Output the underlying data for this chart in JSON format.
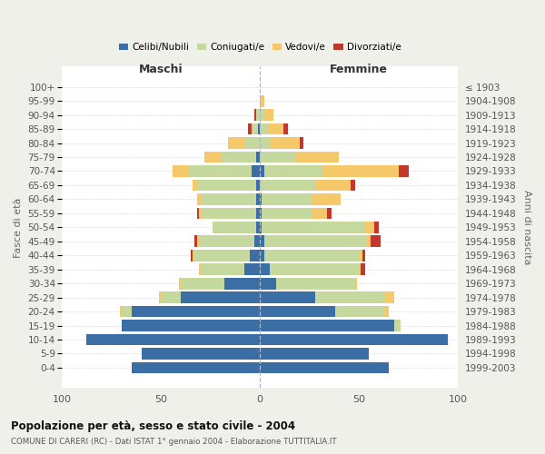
{
  "age_groups": [
    "0-4",
    "5-9",
    "10-14",
    "15-19",
    "20-24",
    "25-29",
    "30-34",
    "35-39",
    "40-44",
    "45-49",
    "50-54",
    "55-59",
    "60-64",
    "65-69",
    "70-74",
    "75-79",
    "80-84",
    "85-89",
    "90-94",
    "95-99",
    "100+"
  ],
  "birth_years": [
    "1999-2003",
    "1994-1998",
    "1989-1993",
    "1984-1988",
    "1979-1983",
    "1974-1978",
    "1969-1973",
    "1964-1968",
    "1959-1963",
    "1954-1958",
    "1949-1953",
    "1944-1948",
    "1939-1943",
    "1934-1938",
    "1929-1933",
    "1924-1928",
    "1919-1923",
    "1914-1918",
    "1909-1913",
    "1904-1908",
    "≤ 1903"
  ],
  "maschi": {
    "celibi": [
      65,
      60,
      88,
      70,
      65,
      40,
      18,
      8,
      5,
      3,
      2,
      2,
      2,
      2,
      4,
      2,
      0,
      1,
      0,
      0,
      0
    ],
    "coniugati": [
      0,
      0,
      0,
      0,
      5,
      10,
      22,
      22,
      28,
      28,
      22,
      28,
      28,
      30,
      32,
      18,
      8,
      3,
      2,
      0,
      0
    ],
    "vedovi": [
      0,
      0,
      0,
      0,
      1,
      1,
      1,
      1,
      1,
      1,
      0,
      1,
      2,
      2,
      8,
      8,
      8,
      0,
      0,
      0,
      0
    ],
    "divorziati": [
      0,
      0,
      0,
      0,
      0,
      0,
      0,
      0,
      1,
      1,
      0,
      1,
      0,
      0,
      0,
      0,
      0,
      2,
      1,
      0,
      0
    ]
  },
  "femmine": {
    "nubili": [
      65,
      55,
      95,
      68,
      38,
      28,
      8,
      5,
      2,
      2,
      1,
      1,
      1,
      0,
      2,
      0,
      0,
      0,
      0,
      0,
      0
    ],
    "coniugate": [
      0,
      0,
      0,
      3,
      25,
      35,
      40,
      45,
      48,
      52,
      52,
      25,
      25,
      28,
      30,
      18,
      5,
      4,
      2,
      0,
      0
    ],
    "vedove": [
      0,
      0,
      0,
      0,
      2,
      5,
      1,
      1,
      2,
      2,
      5,
      8,
      15,
      18,
      38,
      22,
      15,
      8,
      5,
      2,
      0
    ],
    "divorziate": [
      0,
      0,
      0,
      0,
      0,
      0,
      0,
      2,
      1,
      5,
      2,
      2,
      0,
      2,
      5,
      0,
      2,
      2,
      0,
      0,
      0
    ]
  },
  "colors": {
    "celibi": "#3a6ea5",
    "coniugati": "#c5d89d",
    "vedovi": "#f5c96a",
    "divorziati": "#c0392b"
  },
  "xlim": 100,
  "title": "Popolazione per età, sesso e stato civile - 2004",
  "subtitle": "COMUNE DI CARERI (RC) - Dati ISTAT 1° gennaio 2004 - Elaborazione TUTTITALIA.IT",
  "ylabel_left": "Fasce di età",
  "ylabel_right": "Anni di nascita",
  "xlabel_maschi": "Maschi",
  "xlabel_femmine": "Femmine",
  "bg_color": "#f0f0eb",
  "plot_bg": "#ffffff"
}
